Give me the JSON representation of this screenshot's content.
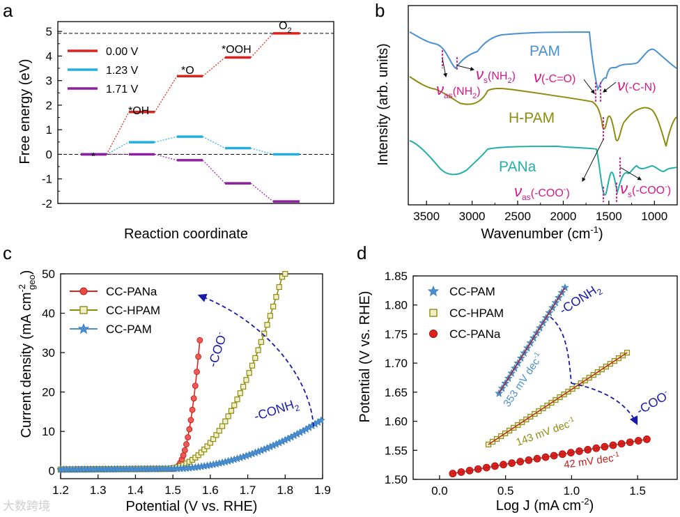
{
  "watermark": "大数跨境",
  "colors": {
    "red": "#e0201c",
    "cyan": "#24aee0",
    "purple": "#8e1fa0",
    "pam": "#4a90d0",
    "hpam": "#8c8c10",
    "pana": "#22b0a8",
    "magenta": "#d4178a",
    "navy": "#1a1aa8"
  },
  "chart_data": [
    {
      "panel": "a",
      "type": "line",
      "ylabel": "Free energy (eV)",
      "xlabel": "Reaction coordinate",
      "ylim": [
        -2,
        5.4
      ],
      "yticks": [
        "-2",
        "-1",
        "0",
        "1",
        "2",
        "3",
        "4",
        "5"
      ],
      "legend": [
        "0.00 V",
        "1.23 V",
        "1.71 V"
      ],
      "legend_placement": "top-left",
      "steps": [
        "*",
        "*OH",
        "*O",
        "*OOH",
        "O2"
      ],
      "step_labels": {
        "s0": "*",
        "s1": "*OH",
        "s2": "*O",
        "s3": "*OOH",
        "s4": "O",
        "s4sub": "2"
      },
      "series": [
        {
          "name": "0.00 V",
          "values": [
            0,
            1.72,
            3.18,
            3.94,
            4.92
          ]
        },
        {
          "name": "1.23 V",
          "values": [
            0,
            0.49,
            0.72,
            0.25,
            0
          ]
        },
        {
          "name": "1.71 V",
          "values": [
            0,
            0,
            -0.24,
            -1.18,
            -1.92
          ]
        }
      ],
      "reference_lines": [
        0,
        4.92
      ]
    },
    {
      "panel": "b",
      "type": "line",
      "xlabel": "Wavenumber (cm",
      "xlabel_sup": "-1",
      "xlabel_end": ")",
      "ylabel": "Intensity (arb. units)",
      "xlim": [
        3700,
        750
      ],
      "xticks": [
        "3500",
        "3000",
        "2500",
        "2000",
        "1500",
        "1000"
      ],
      "series": [
        {
          "name": "PAM"
        },
        {
          "name": "H-PAM"
        },
        {
          "name": "PANa"
        }
      ],
      "annotations": {
        "nu": "ν",
        "nas_nh2_sub": "as",
        "nas_nh2": "(NH",
        "ns_nh2_sub": "s",
        "ns_nh2": "(NH",
        "nh2_sub": "2",
        "close": ")",
        "nco": "(-C=O)",
        "ncn": "(-C-N)",
        "nas_coo_sub": "as",
        "nas_coo": "(-COO",
        "ns_coo_sub": "s",
        "ns_coo": "(-COO",
        "minus": "-"
      }
    },
    {
      "panel": "c",
      "type": "line",
      "xlabel": "Potential (V vs. RHE)",
      "ylabel": "Current density (mA cm",
      "ylabel_sup": "-2",
      "ylabel_sub": "geo",
      "ylabel_end": ")",
      "xlim": [
        1.2,
        1.9
      ],
      "ylim": [
        -2,
        50
      ],
      "xticks": [
        "1.2",
        "1.3",
        "1.4",
        "1.5",
        "1.6",
        "1.7",
        "1.8",
        "1.9"
      ],
      "yticks": [
        "0",
        "10",
        "20",
        "30",
        "40",
        "50"
      ],
      "legend_placement": "top-left",
      "series": [
        {
          "name": "CC-PANa"
        },
        {
          "name": "CC-HPAM"
        },
        {
          "name": "CC-PAM"
        }
      ],
      "annotations": {
        "coo": "-COO",
        "coo_sup": "-",
        "conh": "-CONH",
        "conh_sub": "2"
      }
    },
    {
      "panel": "d",
      "type": "scatter",
      "xlabel": "Log J (mA cm",
      "xlabel_sup": "-2",
      "xlabel_end": ")",
      "ylabel": "Potential (V vs. RHE)",
      "xlim": [
        -0.2,
        1.8
      ],
      "ylim": [
        1.5,
        1.85
      ],
      "xticks": [
        "0.0",
        "0.5",
        "1.0",
        "1.5"
      ],
      "yticks": [
        "1.50",
        "1.55",
        "1.60",
        "1.65",
        "1.70",
        "1.75",
        "1.80",
        "1.85"
      ],
      "legend_placement": "top-left",
      "series": [
        {
          "name": "CC-PAM",
          "x_range": [
            0.45,
            0.95
          ],
          "y_range": [
            1.648,
            1.83
          ],
          "slope_label": "353 mV dec",
          "sup": "-1"
        },
        {
          "name": "CC-HPAM",
          "x_range": [
            0.37,
            1.42
          ],
          "y_range": [
            1.56,
            1.718
          ],
          "slope_label": "143 mV dec",
          "sup": "-1"
        },
        {
          "name": "CC-PANa",
          "x_range": [
            0.1,
            1.57
          ],
          "y_range": [
            1.51,
            1.569
          ],
          "slope_label": "42 mV dec",
          "sup": "-1"
        }
      ],
      "annotations": {
        "conh": "-CONH",
        "conh_sub": "2",
        "coo": "-COO",
        "coo_sup": "-"
      }
    }
  ],
  "panels": {
    "a": "a",
    "b": "b",
    "c": "c",
    "d": "d"
  }
}
